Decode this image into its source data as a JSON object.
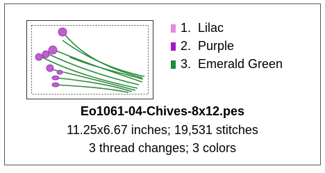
{
  "threads": [
    {
      "label": "1.  Lilac",
      "color": "#e48ad8"
    },
    {
      "label": "2.  Purple",
      "color": "#a416c6"
    },
    {
      "label": "3.  Emerald Green",
      "color": "#1e8a3a"
    }
  ],
  "file_name": "Eo1061-04-Chives-8x12.pes",
  "details": [
    "11.25x6.67 inches; 19,531 stitches",
    "3 thread changes; 3 colors"
  ]
}
